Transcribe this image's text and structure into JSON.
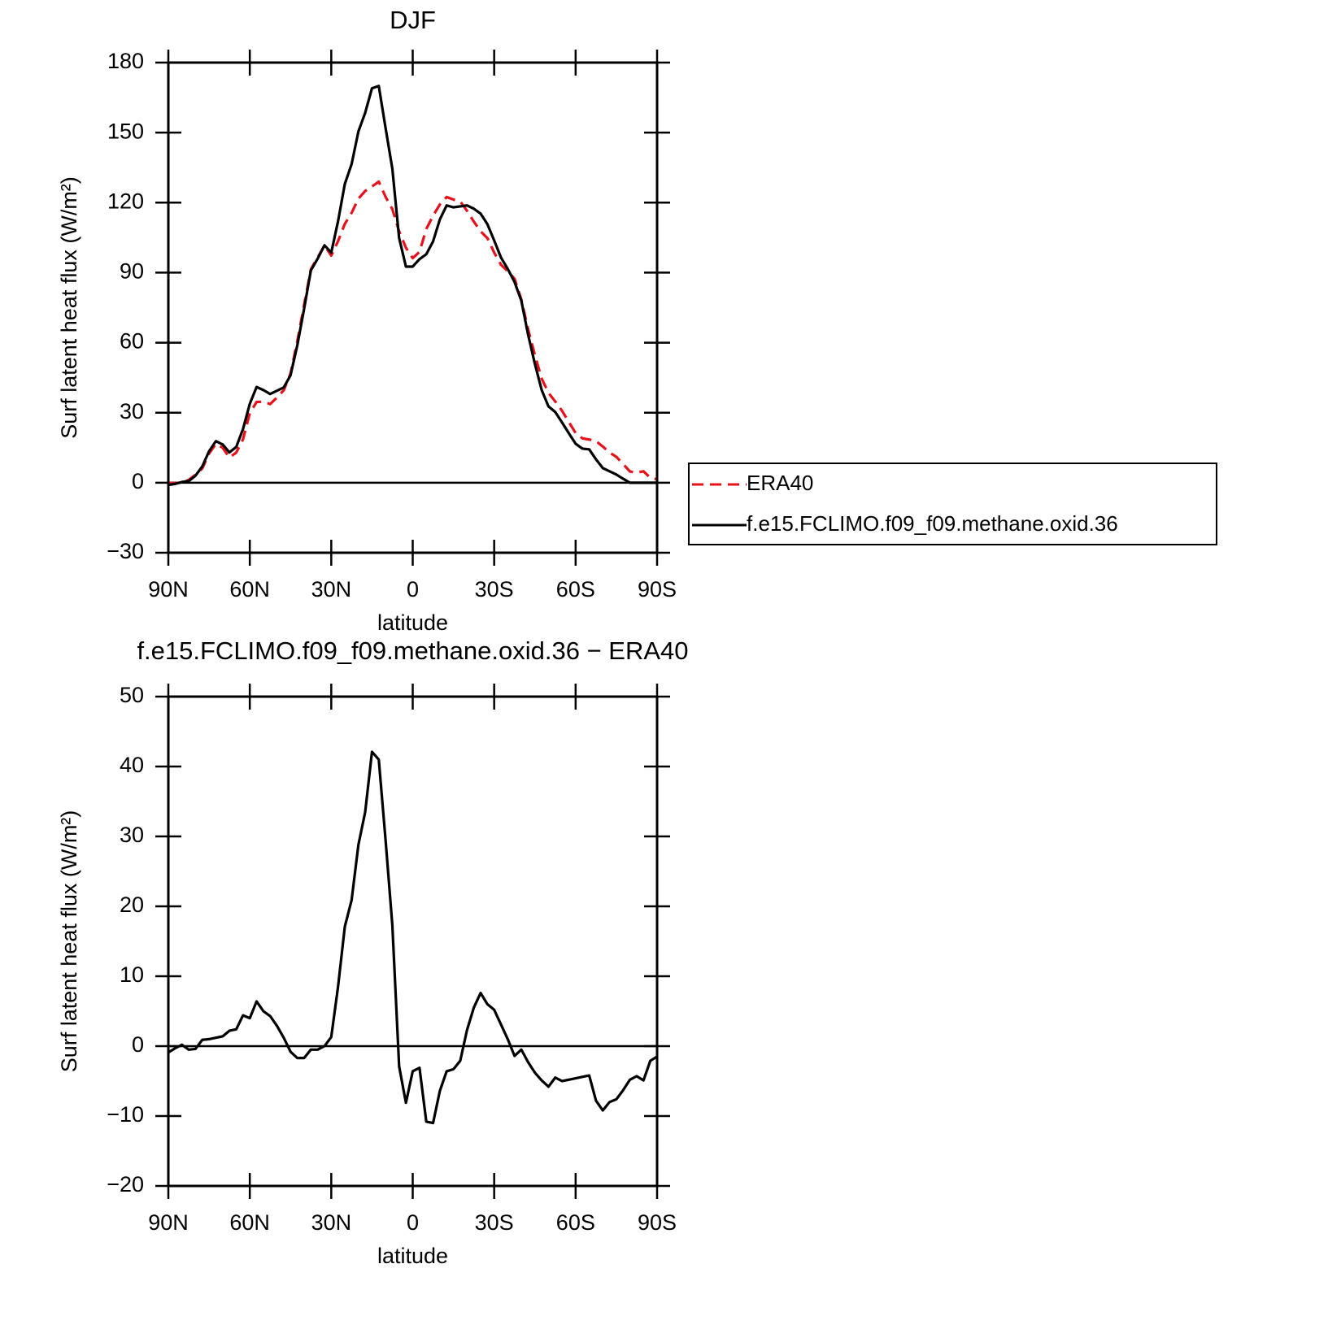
{
  "chart_data": [
    {
      "type": "line",
      "title": "DJF",
      "xlabel": "latitude",
      "ylabel": "Surf latent heat flux (W/m²)",
      "x": [
        90,
        87.5,
        85,
        82.5,
        80,
        77.5,
        75,
        72.5,
        70,
        67.5,
        65,
        62.5,
        60,
        57.5,
        55,
        52.5,
        50,
        47.5,
        45,
        42.5,
        40,
        37.5,
        35,
        32.5,
        30,
        27.5,
        25,
        22.5,
        20,
        17.5,
        15,
        12.5,
        10,
        7.5,
        5,
        2.5,
        0,
        -2.5,
        -5,
        -7.5,
        -10,
        -12.5,
        -15,
        -17.5,
        -20,
        -22.5,
        -25,
        -27.5,
        -30,
        -32.5,
        -35,
        -37.5,
        -40,
        -42.5,
        -45,
        -47.5,
        -50,
        -52.5,
        -55,
        -57.5,
        -60,
        -62.5,
        -65,
        -67.5,
        -70,
        -72.5,
        -75,
        -77.5,
        -80,
        -82.5,
        -85,
        -87.5,
        -90
      ],
      "series": [
        {
          "name": "ERA40",
          "color": "#e8101a",
          "dash": true,
          "values": [
            -0.1,
            -0.2,
            0.1,
            1.2,
            3.4,
            6.1,
            12.5,
            16.6,
            15,
            10.8,
            12.9,
            18.6,
            29.8,
            34.6,
            34.7,
            33.7,
            36.5,
            39.6,
            46.8,
            60.6,
            76.2,
            91.5,
            96.5,
            101.7,
            97.3,
            103.5,
            110.9,
            115.6,
            121.7,
            125,
            126.9,
            129,
            122.5,
            117.2,
            107.7,
            100.7,
            96.2,
            98.9,
            108.7,
            114.4,
            119.2,
            122.4,
            121.3,
            120.5,
            116.5,
            111.9,
            107.7,
            104.8,
            98.6,
            93.4,
            90.6,
            87.4,
            78.5,
            65.7,
            54.7,
            44.6,
            38.5,
            34.8,
            30.8,
            26,
            21.3,
            19,
            18.5,
            17.8,
            15.5,
            12.9,
            11.1,
            8,
            4.8,
            4.3,
            4.9,
            2.1,
            1.5
          ]
        },
        {
          "name": "f.e15.FCLIMO.f09_f09.methane.oxid.36",
          "color": "#000000",
          "dash": false,
          "values": [
            -1,
            -0.5,
            0.3,
            0.7,
            3,
            7,
            13.5,
            17.8,
            16.4,
            13,
            15.3,
            23,
            33.8,
            41,
            39.7,
            38,
            39.4,
            40.8,
            46,
            58.9,
            74.5,
            91,
            96,
            101.7,
            98.6,
            112,
            128,
            136.5,
            150.5,
            158.5,
            169,
            170,
            152,
            134.5,
            104.8,
            92.6,
            92.6,
            95.8,
            97.9,
            103.4,
            112.8,
            118.8,
            118,
            118.4,
            118.8,
            117.4,
            115.3,
            110.8,
            103.8,
            96.5,
            91.6,
            86,
            78,
            63.4,
            50.9,
            39.7,
            32.7,
            30.3,
            25.8,
            21.2,
            16.7,
            14.6,
            14.3,
            10,
            6.3,
            4.9,
            3.5,
            1.7,
            0,
            0,
            0,
            0,
            0
          ]
        }
      ],
      "xlim": [
        90,
        -90
      ],
      "xticks": [
        {
          "value": 90,
          "label": "90N"
        },
        {
          "value": 60,
          "label": "60N"
        },
        {
          "value": 30,
          "label": "30N"
        },
        0,
        {
          "value": -30,
          "label": "30S"
        },
        {
          "value": -60,
          "label": "60S"
        },
        {
          "value": -90,
          "label": "90S"
        }
      ],
      "ylim": [
        -30,
        180
      ],
      "yticks": [
        {
          "value": -30,
          "label": "−30"
        },
        0,
        30,
        60,
        90,
        120,
        150,
        180
      ],
      "reference_line": 0,
      "legend": "right"
    },
    {
      "type": "line",
      "title": "f.e15.FCLIMO.f09_f09.methane.oxid.36 − ERA40",
      "xlabel": "latitude",
      "ylabel": "Surf latent heat flux (W/m²)",
      "x": [
        90,
        87.5,
        85,
        82.5,
        80,
        77.5,
        75,
        72.5,
        70,
        67.5,
        65,
        62.5,
        60,
        57.5,
        55,
        52.5,
        50,
        47.5,
        45,
        42.5,
        40,
        37.5,
        35,
        32.5,
        30,
        27.5,
        25,
        22.5,
        20,
        17.5,
        15,
        12.5,
        10,
        7.5,
        5,
        2.5,
        0,
        -2.5,
        -5,
        -7.5,
        -10,
        -12.5,
        -15,
        -17.5,
        -20,
        -22.5,
        -25,
        -27.5,
        -30,
        -32.5,
        -35,
        -37.5,
        -40,
        -42.5,
        -45,
        -47.5,
        -50,
        -52.5,
        -55,
        -57.5,
        -60,
        -62.5,
        -65,
        -67.5,
        -70,
        -72.5,
        -75,
        -77.5,
        -80,
        -82.5,
        -85,
        -87.5,
        -90
      ],
      "color": "#000000",
      "values": [
        -0.9,
        -0.3,
        0.2,
        -0.5,
        -0.4,
        0.9,
        1,
        1.2,
        1.4,
        2.2,
        2.4,
        4.4,
        4,
        6.4,
        5,
        4.3,
        2.9,
        1.2,
        -0.8,
        -1.7,
        -1.7,
        -0.5,
        -0.5,
        0,
        1.3,
        8.5,
        17.1,
        20.9,
        28.8,
        33.5,
        42.1,
        41,
        29.5,
        17.3,
        -2.9,
        -8.1,
        -3.6,
        -3.1,
        -10.8,
        -11,
        -6.4,
        -3.6,
        -3.3,
        -2.1,
        2.3,
        5.5,
        7.6,
        6,
        5.2,
        3.1,
        1,
        -1.4,
        -0.5,
        -2.3,
        -3.8,
        -4.9,
        -5.8,
        -4.5,
        -5,
        -4.8,
        -4.6,
        -4.4,
        -4.2,
        -7.8,
        -9.2,
        -8,
        -7.6,
        -6.3,
        -4.8,
        -4.3,
        -4.9,
        -2.1,
        -1.5
      ],
      "xlim": [
        90,
        -90
      ],
      "xticks": [
        {
          "value": 90,
          "label": "90N"
        },
        {
          "value": 60,
          "label": "60N"
        },
        {
          "value": 30,
          "label": "30N"
        },
        0,
        {
          "value": -30,
          "label": "30S"
        },
        {
          "value": -60,
          "label": "60S"
        },
        {
          "value": -90,
          "label": "90S"
        }
      ],
      "ylim": [
        -20,
        50
      ],
      "yticks": [
        {
          "value": -20,
          "label": "−20"
        },
        {
          "value": -10,
          "label": "−10"
        },
        0,
        10,
        20,
        30,
        40,
        50
      ],
      "reference_line": 0
    }
  ]
}
